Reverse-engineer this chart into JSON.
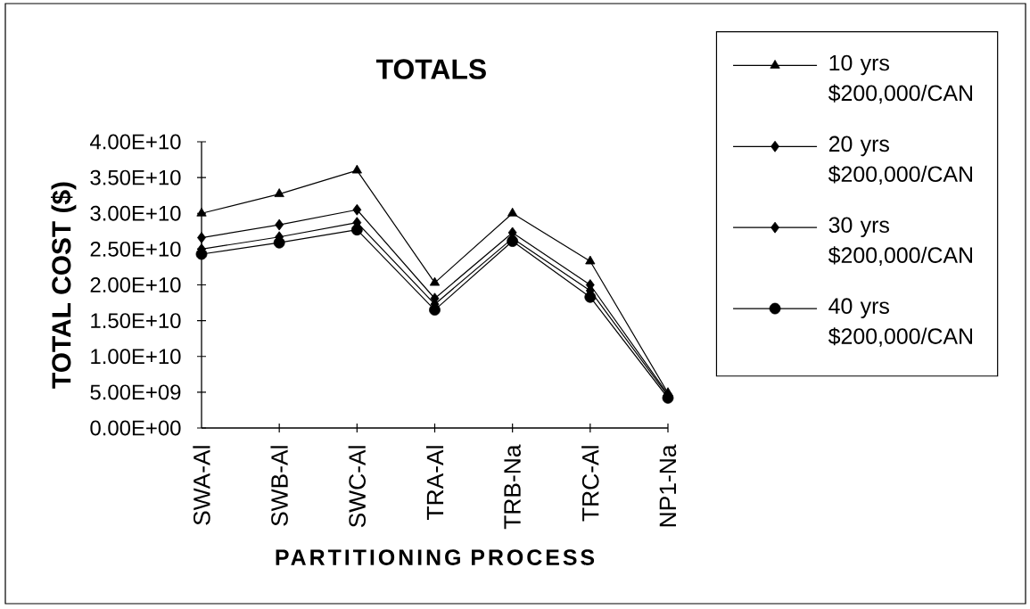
{
  "chart_data": {
    "type": "line",
    "title": "TOTALS",
    "xlabel": "PARTITIONING PROCESS",
    "ylabel": "TOTAL COST ($)",
    "categories": [
      "SWA-Al",
      "SWB-Al",
      "SWC-Al",
      "TRA-Al",
      "TRB-Na",
      "TRC-Al",
      "NP1-Na"
    ],
    "series": [
      {
        "name": "10 yrs $200,000/CAN",
        "color": "#000000",
        "marker": "triangle",
        "values": [
          30000000000.0,
          32700000000.0,
          36000000000.0,
          20300000000.0,
          30000000000.0,
          23300000000.0,
          4900000000.0
        ]
      },
      {
        "name": "20 yrs $200,000/CAN",
        "color": "#000000",
        "marker": "diamond",
        "values": [
          26600000000.0,
          28400000000.0,
          30500000000.0,
          18100000000.0,
          27300000000.0,
          20000000000.0,
          4700000000.0
        ]
      },
      {
        "name": "30 yrs $200,000/CAN",
        "color": "#000000",
        "marker": "diamond",
        "values": [
          25000000000.0,
          26700000000.0,
          28700000000.0,
          17300000000.0,
          26500000000.0,
          19200000000.0,
          4500000000.0
        ]
      },
      {
        "name": "40 yrs $200,000/CAN",
        "color": "#000000",
        "marker": "circle",
        "values": [
          24300000000.0,
          25900000000.0,
          27700000000.0,
          16500000000.0,
          26100000000.0,
          18300000000.0,
          4200000000.0
        ]
      }
    ],
    "ylim": [
      0,
      40000000000.0
    ],
    "yticks": [
      {
        "value": 0,
        "label": "0.00E+00"
      },
      {
        "value": 5000000000.0,
        "label": "5.00E+09"
      },
      {
        "value": 10000000000.0,
        "label": "1.00E+10"
      },
      {
        "value": 15000000000.0,
        "label": "1.50E+10"
      },
      {
        "value": 20000000000.0,
        "label": "2.00E+10"
      },
      {
        "value": 25000000000.0,
        "label": "2.50E+10"
      },
      {
        "value": 30000000000.0,
        "label": "3.00E+10"
      },
      {
        "value": 35000000000.0,
        "label": "3.50E+10"
      },
      {
        "value": 40000000000.0,
        "label": "4.00E+10"
      }
    ],
    "legend": "right",
    "line_style": "solid"
  }
}
